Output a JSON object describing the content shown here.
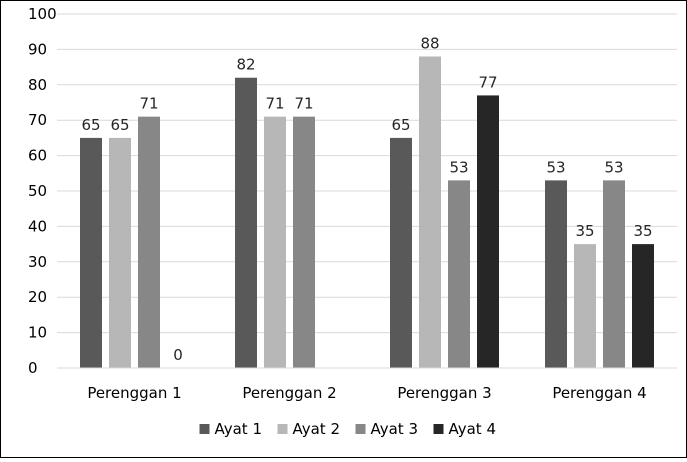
{
  "chart_data": {
    "type": "bar",
    "categories": [
      "Perenggan 1",
      "Perenggan 2",
      "Perenggan 3",
      "Perenggan 4"
    ],
    "series": [
      {
        "name": "Ayat 1",
        "color": "#595959",
        "values": [
          65,
          82,
          65,
          53
        ]
      },
      {
        "name": "Ayat 2",
        "color": "#b7b7b7",
        "values": [
          65,
          71,
          88,
          35
        ]
      },
      {
        "name": "Ayat 3",
        "color": "#878787",
        "values": [
          71,
          71,
          53,
          53
        ]
      },
      {
        "name": "Ayat 4",
        "color": "#262626",
        "values": [
          0,
          null,
          77,
          35
        ]
      }
    ],
    "data_labels": [
      [
        "65",
        "82",
        "65",
        "53"
      ],
      [
        "65",
        "71",
        "88",
        "35"
      ],
      [
        "71",
        "71",
        "53",
        "53"
      ],
      [
        "0",
        "",
        "77",
        "35"
      ]
    ],
    "ylim": [
      0,
      100
    ],
    "yticks": [
      "0",
      "10",
      "20",
      "30",
      "40",
      "50",
      "60",
      "70",
      "80",
      "90",
      "100"
    ],
    "grid": true,
    "legend_position": "bottom",
    "title": "",
    "xlabel": "",
    "ylabel": ""
  }
}
